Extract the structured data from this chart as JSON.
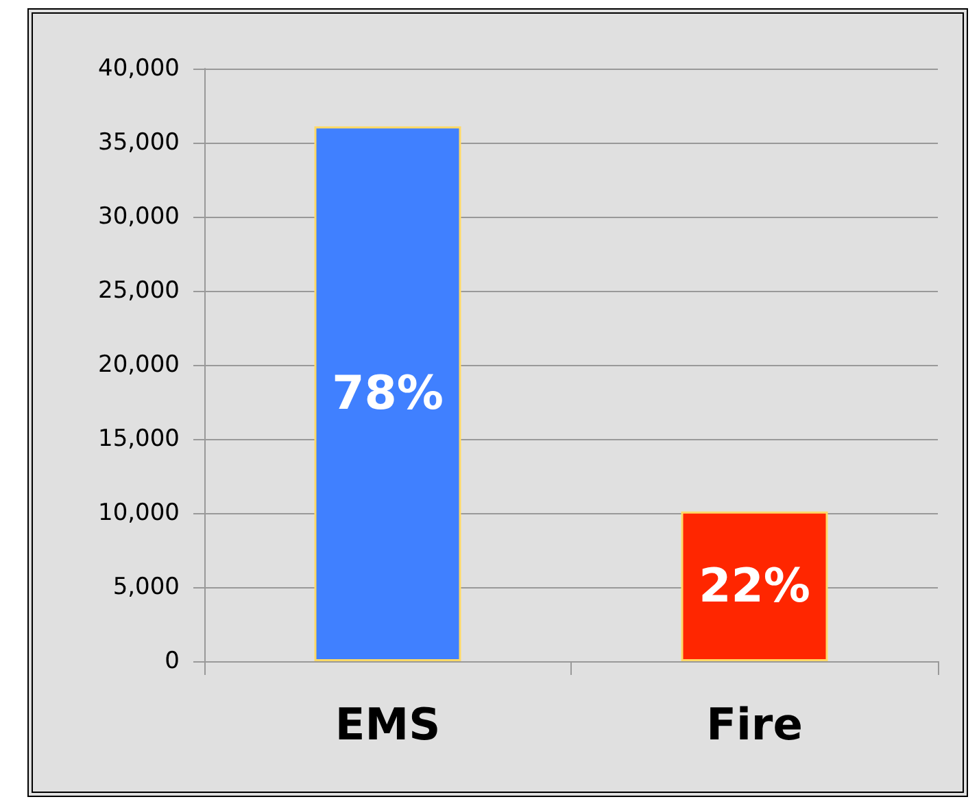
{
  "chart_data": {
    "type": "bar",
    "categories": [
      "EMS",
      "Fire"
    ],
    "values": [
      36100,
      10100
    ],
    "colors": [
      "#4080ff",
      "#ff2600"
    ],
    "annotations": [
      "78%",
      "22%"
    ],
    "ylim": [
      0,
      40000
    ],
    "yticks": [
      {
        "value": 0,
        "label": "0"
      },
      {
        "value": 5000,
        "label": "5,000"
      },
      {
        "value": 10000,
        "label": "10,000"
      },
      {
        "value": 15000,
        "label": "15,000"
      },
      {
        "value": 20000,
        "label": "20,000"
      },
      {
        "value": 25000,
        "label": "25,000"
      },
      {
        "value": 30000,
        "label": "30,000"
      },
      {
        "value": 35000,
        "label": "35,000"
      },
      {
        "value": 40000,
        "label": "40,000"
      }
    ],
    "grid": "y"
  }
}
